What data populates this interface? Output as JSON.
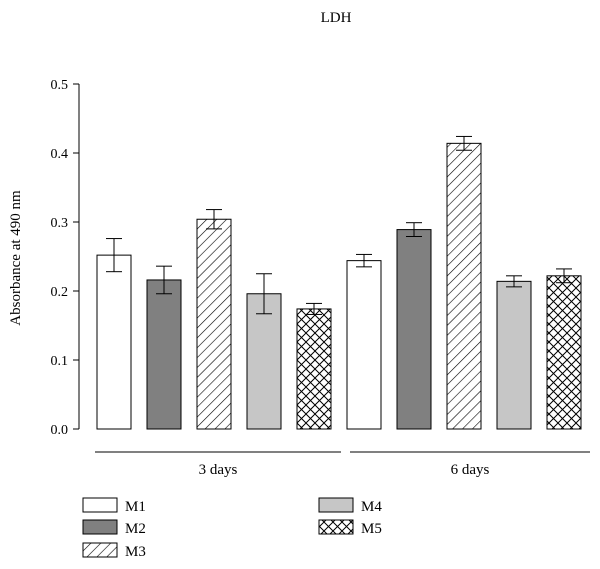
{
  "chart_data": {
    "type": "bar",
    "title": "LDH",
    "xlabel": "",
    "ylabel": "Absorbance at 490 nm",
    "ylim": [
      0,
      0.5
    ],
    "yticks": [
      "0.0",
      "0.1",
      "0.2",
      "0.3",
      "0.4",
      "0.5"
    ],
    "categories": [
      "3 days",
      "6 days"
    ],
    "series": [
      {
        "name": "M1",
        "pattern": "white",
        "values": [
          0.252,
          0.244
        ],
        "errors": [
          0.024,
          0.009
        ]
      },
      {
        "name": "M2",
        "pattern": "dark-gray",
        "values": [
          0.216,
          0.289
        ],
        "errors": [
          0.02,
          0.01
        ]
      },
      {
        "name": "M3",
        "pattern": "diagonal-hatch",
        "values": [
          0.304,
          0.414
        ],
        "errors": [
          0.014,
          0.01
        ]
      },
      {
        "name": "M4",
        "pattern": "light-gray",
        "values": [
          0.196,
          0.214
        ],
        "errors": [
          0.029,
          0.008
        ]
      },
      {
        "name": "M5",
        "pattern": "cross-hatch",
        "values": [
          0.174,
          0.222
        ],
        "errors": [
          0.008,
          0.01
        ]
      }
    ],
    "colors": {
      "dark-gray": "#808080",
      "light-gray": "#c6c6c6",
      "white": "#ffffff",
      "stroke": "#000000"
    },
    "legend_position": "bottom",
    "grid": false
  }
}
